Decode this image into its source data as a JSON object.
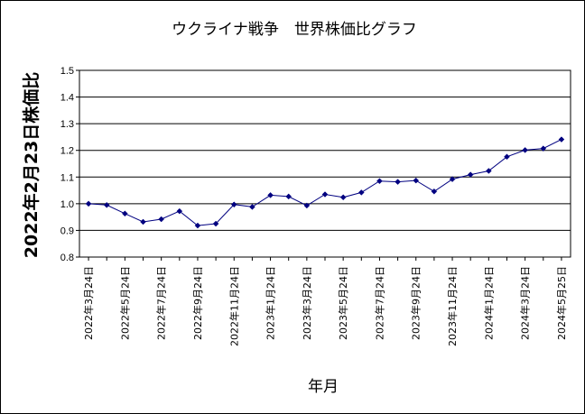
{
  "chart_data": {
    "type": "line",
    "title": "ウクライナ戦争　世界株価比グラフ",
    "ylabel": "2022年2月23日株価比",
    "xlabel": "年月",
    "ylim": [
      0.8,
      1.5
    ],
    "yticks": [
      "0.8",
      "0.9",
      "1.0",
      "1.1",
      "1.2",
      "1.3",
      "1.4",
      "1.5"
    ],
    "grid": true,
    "legend": "none",
    "x": [
      "2022年3月24日",
      "2022年4月24日",
      "2022年5月24日",
      "2022年6月24日",
      "2022年7月24日",
      "2022年8月24日",
      "2022年9月24日",
      "2022年10月24日",
      "2022年11月24日",
      "2022年12月24日",
      "2023年1月24日",
      "2023年2月24日",
      "2023年3月24日",
      "2023年4月24日",
      "2023年5月24日",
      "2023年6月24日",
      "2023年7月24日",
      "2023年8月24日",
      "2023年9月24日",
      "2023年10月24日",
      "2023年11月24日",
      "2023年12月24日",
      "2024年1月24日",
      "2024年2月24日",
      "2024年3月24日",
      "2024年4月24日",
      "2024年5月25日"
    ],
    "x_tick_labels": [
      "2022年3月24日",
      "2022年5月24日",
      "2022年7月24日",
      "2022年9月24日",
      "2022年11月24日",
      "2023年1月24日",
      "2023年3月24日",
      "2023年5月24日",
      "2023年7月24日",
      "2023年9月24日",
      "2023年11月24日",
      "2024年1月24日",
      "2024年3月24日",
      "2024年5月25日"
    ],
    "series": [
      {
        "values": [
          1.0,
          0.995,
          0.963,
          0.932,
          0.942,
          0.972,
          0.918,
          0.925,
          0.997,
          0.988,
          1.032,
          1.027,
          0.993,
          1.035,
          1.024,
          1.042,
          1.085,
          1.082,
          1.087,
          1.046,
          1.092,
          1.109,
          1.123,
          1.176,
          1.201,
          1.207,
          1.241
        ],
        "color": "#000080"
      }
    ]
  }
}
